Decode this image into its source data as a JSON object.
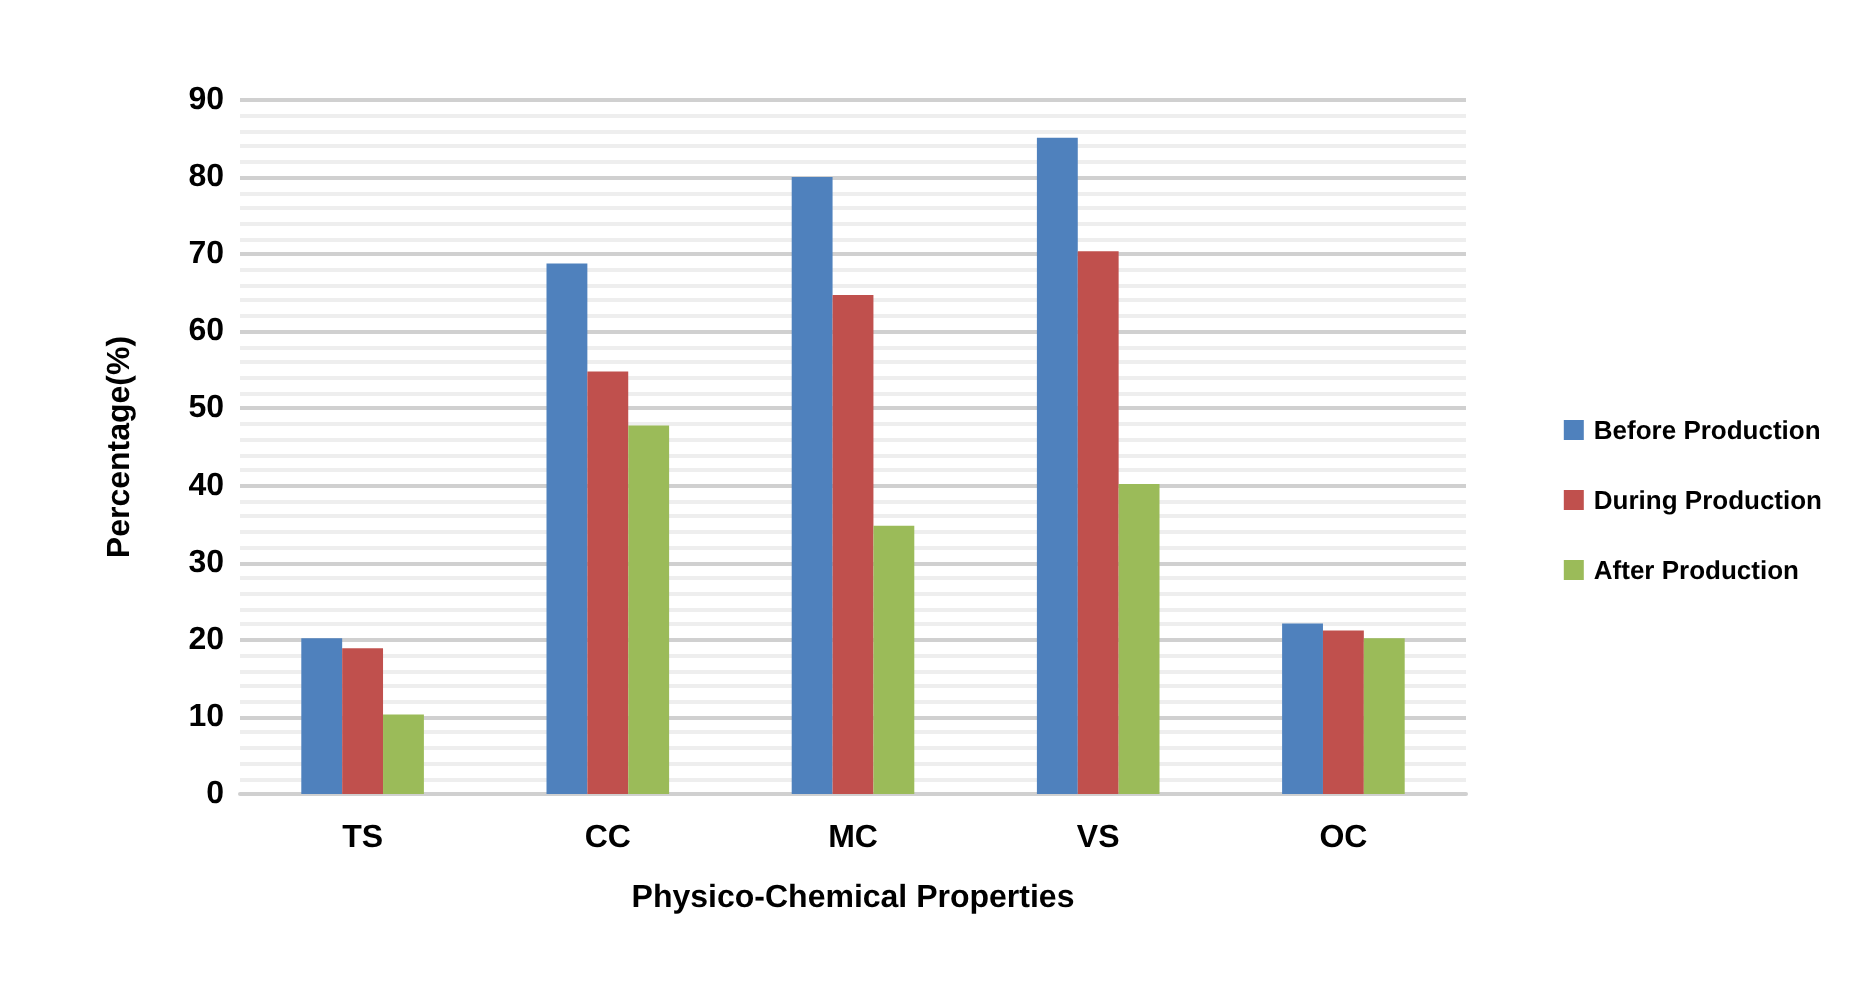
{
  "chart_data": {
    "type": "bar",
    "xlabel": "Physico-Chemical Properties",
    "ylabel": "Percentage(%)",
    "categories": [
      "TS",
      "CC",
      "MC",
      "VS",
      "OC"
    ],
    "series": [
      {
        "name": "Before Production",
        "color": "#4f81bd",
        "values": [
          20.2,
          68.8,
          80,
          85.1,
          22.1
        ]
      },
      {
        "name": "During Production",
        "color": "#c0504d",
        "values": [
          18.9,
          54.8,
          64.7,
          70.4,
          21.2
        ]
      },
      {
        "name": "After Production",
        "color": "#9bbb59",
        "values": [
          10.3,
          47.8,
          34.8,
          40.2,
          20.2
        ]
      }
    ],
    "ylim": [
      0,
      90
    ],
    "yticks": [
      0,
      10,
      20,
      30,
      40,
      50,
      60,
      70,
      80,
      90
    ],
    "grid": "y",
    "legend": "right"
  }
}
